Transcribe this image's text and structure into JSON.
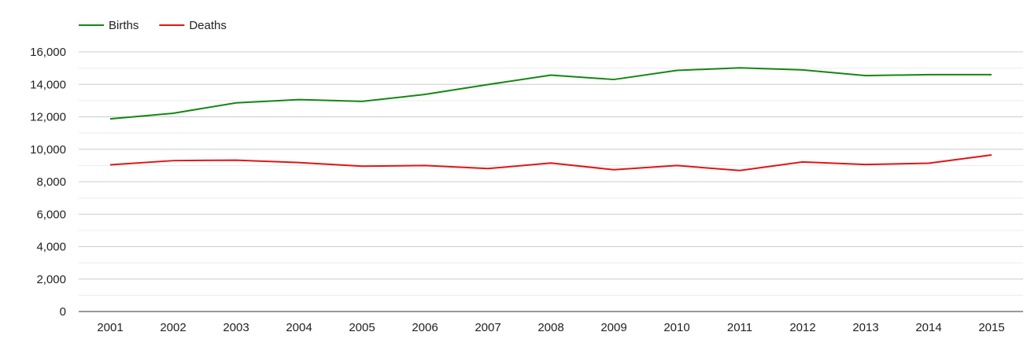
{
  "chart_data": {
    "type": "line",
    "categories": [
      "2001",
      "2002",
      "2003",
      "2004",
      "2005",
      "2006",
      "2007",
      "2008",
      "2009",
      "2010",
      "2011",
      "2012",
      "2013",
      "2014",
      "2015"
    ],
    "series": [
      {
        "name": "Births",
        "color": "#128812",
        "values": [
          11870,
          12220,
          12860,
          13060,
          12950,
          13380,
          13990,
          14570,
          14300,
          14860,
          15020,
          14890,
          14540,
          14600,
          14600
        ]
      },
      {
        "name": "Deaths",
        "color": "#e31414",
        "values": [
          9040,
          9300,
          9330,
          9180,
          8960,
          9000,
          8810,
          9150,
          8740,
          9000,
          8690,
          9220,
          9060,
          9140,
          9650
        ]
      }
    ],
    "yticks": [
      "0",
      "2,000",
      "4,000",
      "6,000",
      "8,000",
      "10,000",
      "12,000",
      "14,000",
      "16,000"
    ],
    "ylim": [
      0,
      16000
    ],
    "grid": true,
    "legend_position": "top-left",
    "title": "",
    "xlabel": "",
    "ylabel": ""
  }
}
